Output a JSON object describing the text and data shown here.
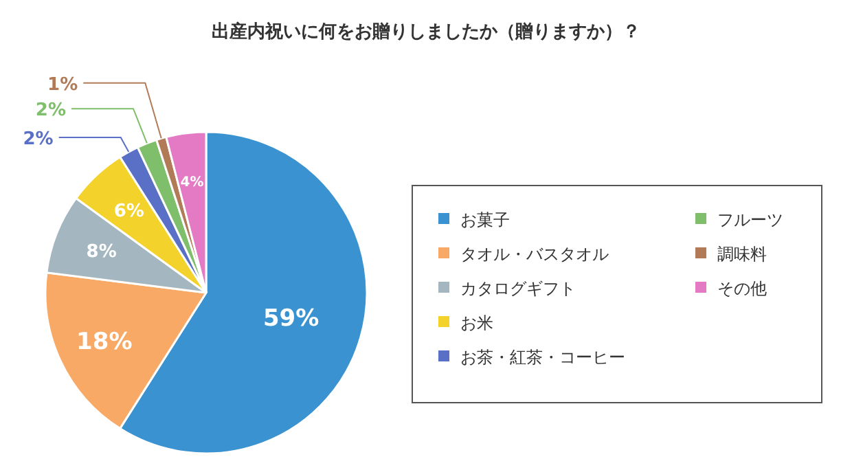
{
  "chart_data": {
    "type": "pie",
    "title": "出産内祝いに何をお贈りしましたか（贈りますか）？",
    "categories": [
      "お菓子",
      "タオル・バスタオル",
      "カタログギフト",
      "お米",
      "お茶・紅茶・コーヒー",
      "フルーツ",
      "調味料",
      "その他"
    ],
    "values": [
      59,
      18,
      8,
      6,
      2,
      2,
      1,
      4
    ],
    "colors": [
      "#3a92d0",
      "#f9a966",
      "#a4b6bf",
      "#f3d22b",
      "#5a6fc6",
      "#7fbe6b",
      "#b27b58",
      "#e47ac4"
    ],
    "value_labels": [
      "59%",
      "18%",
      "8%",
      "6%",
      "2%",
      "2%",
      "1%",
      "4%"
    ],
    "legend": "right"
  }
}
